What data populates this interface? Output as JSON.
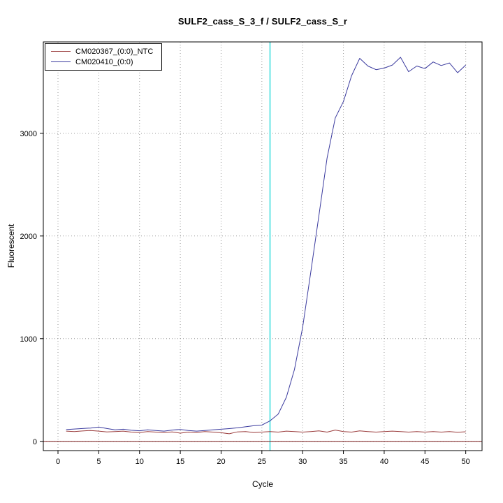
{
  "page": {
    "background": "#ffffff"
  },
  "chart_data": {
    "type": "line",
    "title": "SULF2_cass_S_3_f / SULF2_cass_S_r",
    "xlabel": "Cycle",
    "ylabel": "Fluorescent",
    "xlim": [
      -1.8,
      52
    ],
    "ylim": [
      -90,
      3890
    ],
    "xticks": [
      0,
      5,
      10,
      15,
      20,
      25,
      30,
      35,
      40,
      45,
      50
    ],
    "yticks": [
      0,
      1000,
      2000,
      3000
    ],
    "grid": "dotted",
    "grid_color": "#999999",
    "legend_position": "top-left",
    "threshold_cycle_line": {
      "x": 26,
      "color": "#33dddd"
    },
    "zero_line": {
      "y": 0,
      "color": "#7a1a1a"
    },
    "x": [
      1,
      2,
      3,
      4,
      5,
      6,
      7,
      8,
      9,
      10,
      11,
      12,
      13,
      14,
      15,
      16,
      17,
      18,
      19,
      20,
      21,
      22,
      23,
      24,
      25,
      26,
      27,
      28,
      29,
      30,
      31,
      32,
      33,
      34,
      35,
      36,
      37,
      38,
      39,
      40,
      41,
      42,
      43,
      44,
      45,
      46,
      47,
      48,
      49,
      50
    ],
    "series": [
      {
        "name": "CM020367_(0:0)_NTC",
        "color": "#9a3b3b",
        "values": [
          100,
          96,
          101,
          106,
          100,
          92,
          96,
          100,
          90,
          86,
          96,
          90,
          86,
          92,
          80,
          90,
          86,
          96,
          90,
          84,
          74,
          92,
          96,
          86,
          90,
          96,
          90,
          100,
          96,
          90,
          96,
          102,
          90,
          110,
          96,
          90,
          102,
          96,
          90,
          96,
          100,
          96,
          90,
          96,
          90,
          96,
          90,
          96,
          88,
          94
        ]
      },
      {
        "name": "CM020410_(0:0)",
        "color": "#3a3a9e",
        "values": [
          115,
          120,
          125,
          130,
          140,
          125,
          112,
          118,
          108,
          103,
          112,
          106,
          100,
          110,
          116,
          106,
          100,
          106,
          112,
          118,
          124,
          132,
          142,
          152,
          158,
          200,
          265,
          430,
          700,
          1110,
          1650,
          2200,
          2760,
          3150,
          3310,
          3560,
          3730,
          3655,
          3620,
          3635,
          3665,
          3740,
          3600,
          3655,
          3630,
          3695,
          3660,
          3685,
          3590,
          3665
        ]
      }
    ]
  }
}
